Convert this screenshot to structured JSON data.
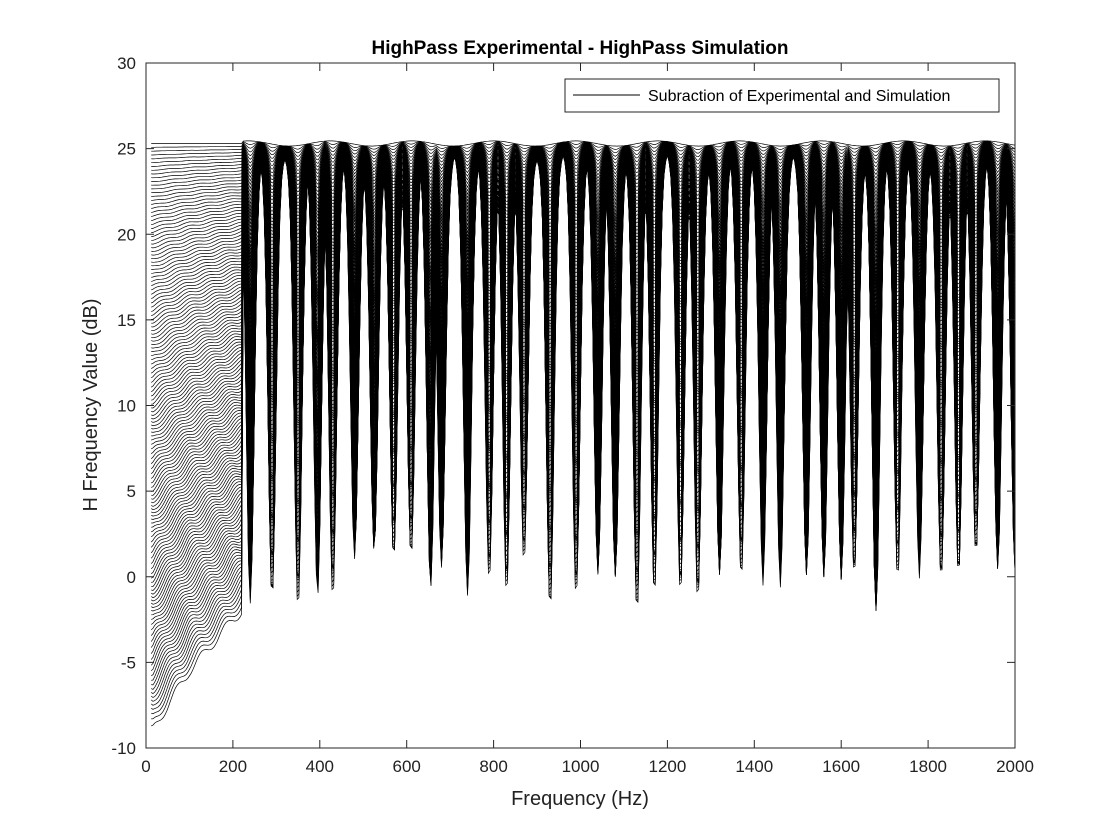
{
  "chart_data": {
    "type": "line",
    "title": "HighPass Experimental - HighPass Simulation",
    "xlabel": "Frequency (Hz)",
    "ylabel": "H Frequency Value (dB)",
    "xlim": [
      0,
      2000
    ],
    "ylim": [
      -10,
      30
    ],
    "xticks": [
      "0",
      "200",
      "400",
      "600",
      "800",
      "1000",
      "1200",
      "1400",
      "1600",
      "1800",
      "2000"
    ],
    "yticks": [
      "-10",
      "-5",
      "0",
      "5",
      "10",
      "15",
      "20",
      "25",
      "30"
    ],
    "grid": false,
    "legend": {
      "placement": "top-right",
      "entries": [
        "Subraction of Experimental and Simulation"
      ]
    },
    "line_color": "#000000",
    "series": [
      {
        "name": "Subraction of Experimental and Simulation",
        "description_note_free": true,
        "curve_count": 140,
        "top_level_db": 25.3,
        "low_frequency_floor_db": [
          {
            "x": 15,
            "y": -9.0
          },
          {
            "x": 50,
            "y": -7.5
          },
          {
            "x": 100,
            "y": -5.5
          },
          {
            "x": 150,
            "y": -4.0
          },
          {
            "x": 200,
            "y": -2.5
          },
          {
            "x": 220,
            "y": -2.0
          }
        ],
        "dips": [
          {
            "x": 240,
            "y": -1.2
          },
          {
            "x": 290,
            "y": -0.8
          },
          {
            "x": 350,
            "y": -1.0
          },
          {
            "x": 395,
            "y": -0.6
          },
          {
            "x": 430,
            "y": -0.7
          },
          {
            "x": 480,
            "y": 1.5
          },
          {
            "x": 525,
            "y": 2.0
          },
          {
            "x": 570,
            "y": 1.5
          },
          {
            "x": 610,
            "y": 1.5
          },
          {
            "x": 655,
            "y": 0.0
          },
          {
            "x": 680,
            "y": 1.0
          },
          {
            "x": 740,
            "y": -0.2
          },
          {
            "x": 790,
            "y": 0.2
          },
          {
            "x": 830,
            "y": -0.5
          },
          {
            "x": 870,
            "y": 1.5
          },
          {
            "x": 930,
            "y": -1.2
          },
          {
            "x": 990,
            "y": -0.8
          },
          {
            "x": 1040,
            "y": 0.5
          },
          {
            "x": 1080,
            "y": 0.5
          },
          {
            "x": 1130,
            "y": -1.4
          },
          {
            "x": 1170,
            "y": -0.5
          },
          {
            "x": 1230,
            "y": -0.5
          },
          {
            "x": 1270,
            "y": -0.8
          },
          {
            "x": 1320,
            "y": 0.5
          },
          {
            "x": 1370,
            "y": 0.5
          },
          {
            "x": 1420,
            "y": 0.3
          },
          {
            "x": 1460,
            "y": 0.3
          },
          {
            "x": 1520,
            "y": 0.5
          },
          {
            "x": 1560,
            "y": 0.3
          },
          {
            "x": 1600,
            "y": 0.3
          },
          {
            "x": 1630,
            "y": 0.5
          },
          {
            "x": 1680,
            "y": -1.4
          },
          {
            "x": 1730,
            "y": 0.5
          },
          {
            "x": 1780,
            "y": 0.5
          },
          {
            "x": 1830,
            "y": 0.3
          },
          {
            "x": 1870,
            "y": 0.5
          },
          {
            "x": 1910,
            "y": 1.5
          },
          {
            "x": 1960,
            "y": 1.0
          },
          {
            "x": 2000,
            "y": 1.0
          }
        ]
      }
    ]
  }
}
